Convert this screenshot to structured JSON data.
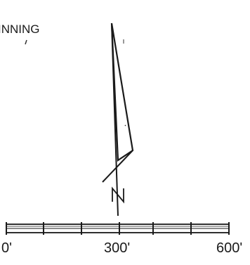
{
  "diagram": {
    "beginning_label": "INNING",
    "north_label": "N",
    "scale_bar": {
      "labels": [
        "0'",
        "300'",
        "600'"
      ]
    }
  }
}
